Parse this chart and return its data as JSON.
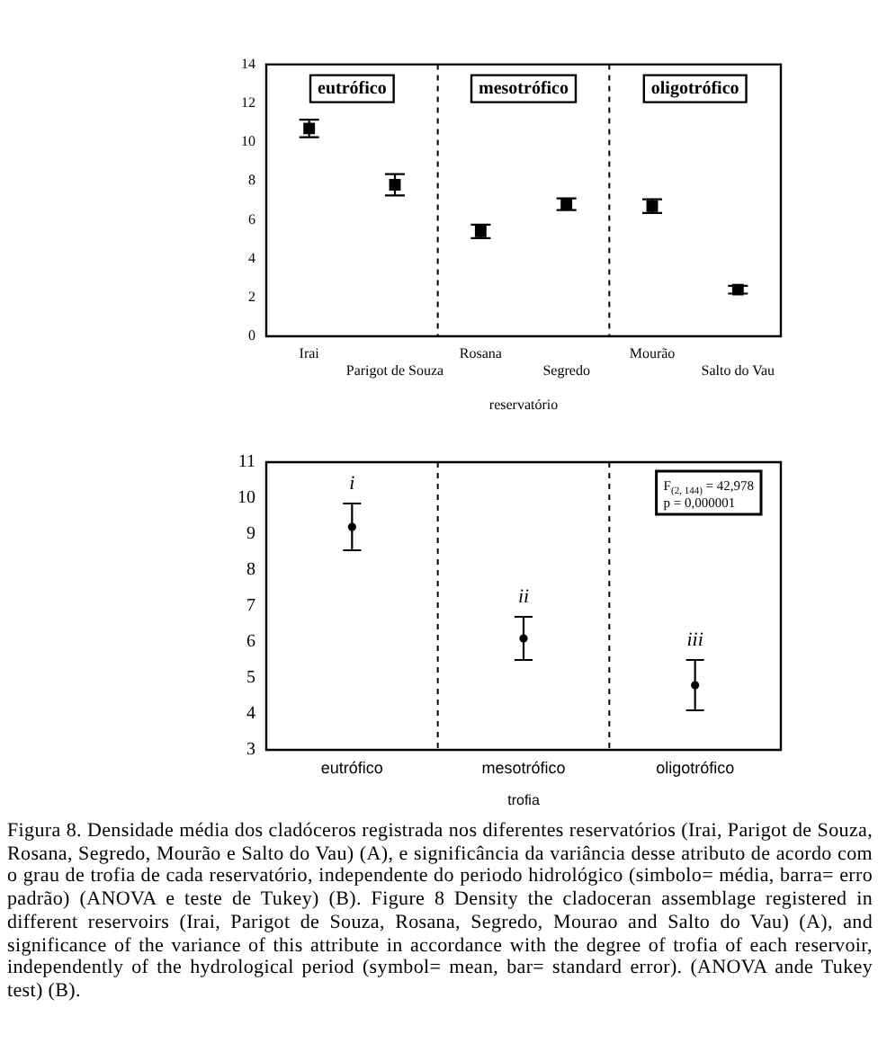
{
  "chart_data": [
    {
      "type": "scatter",
      "categories": [
        "Irai",
        "Parigot de Souza",
        "Rosana",
        "Segredo",
        "Mourão",
        "Salto do Vau"
      ],
      "values": [
        10.7,
        7.8,
        5.4,
        6.8,
        6.7,
        2.4
      ],
      "errors": [
        0.45,
        0.55,
        0.35,
        0.3,
        0.35,
        0.2
      ],
      "color": "#000000",
      "xlabel": "reservatório",
      "ylim": [
        0,
        14
      ],
      "yticks": [
        0,
        2,
        4,
        6,
        8,
        10,
        12,
        14
      ],
      "annotations": [
        "eutrófico",
        "mesotrófico",
        "oligotrófico"
      ]
    },
    {
      "type": "scatter",
      "categories": [
        "eutrófico",
        "mesotrófico",
        "oligotrófico"
      ],
      "values": [
        9.2,
        6.1,
        4.8
      ],
      "errors": [
        0.65,
        0.6,
        0.7
      ],
      "color": "#000000",
      "marker": "circle",
      "xlabel": "trofia",
      "ylim": [
        3,
        11
      ],
      "yticks": [
        3,
        4,
        5,
        6,
        7,
        8,
        9,
        10,
        11
      ],
      "annotations": [
        {
          "text": "i",
          "x": "eutrófico",
          "y": 9.2
        },
        {
          "text": "ii",
          "x": "mesotrófico",
          "y": 6.1
        },
        {
          "text": "iii",
          "x": "oligotrófico",
          "y": 4.8
        },
        "F$_{(2, 144)}$ = 42,978",
        "p = 0,000001"
      ]
    },
    {
      "type": "other",
      "annotations": [
        "Figura 8. Densidade média dos cladóceros registrada nos diferentes reservatórios (Irai, Parigot de Souza, Rosana, Segredo, Mourão e Salto do Vau) (A), e significância da variância desse atributo de acordo com o grau de trofia de cada reservatório, independente do periodo hidrológico (simbolo= média, barra= erro padrão) (ANOVA e teste de Tukey) (B). Figure 8 Density the cladoceran assemblage registered in different reservoirs (Irai, Parigot de Souza, Rosana, Segredo, Mourao and Salto do Vau) (A), and significance of the variance of this attribute in accordance with the degree of trofia of each reservoir, independently of the hydrological period (symbol= mean, bar= standard error). (ANOVA ande Tukey test) (B)."
      ]
    }
  ]
}
